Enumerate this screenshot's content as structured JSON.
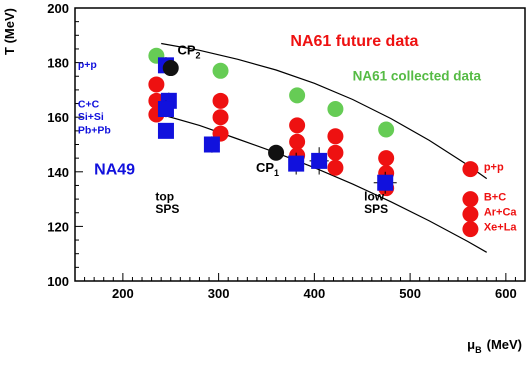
{
  "chart_data": {
    "type": "scatter",
    "xlabel": "(MeV)",
    "xlabel_symbol": "μ",
    "xlabel_sub": "B",
    "ylabel": "T (MeV)",
    "xlim": [
      150,
      620
    ],
    "ylim": [
      100,
      200
    ],
    "xticks": [
      200,
      300,
      400,
      500,
      600
    ],
    "yticks": [
      100,
      120,
      140,
      160,
      180,
      200
    ],
    "grid": false,
    "colors": {
      "na61_future": "#ee1111",
      "na61_collected": "#66cc55",
      "na49": "#1111dd",
      "critical_point": "#111111",
      "curve": "#000000",
      "red_label": "#ee1111",
      "green_label": "#55bb44",
      "blue_label": "#1111dd",
      "black_label": "#000000"
    },
    "curves": [
      {
        "x": [
          240,
          280,
          320,
          360,
          400,
          440,
          480,
          520,
          560,
          580
        ],
        "y": [
          187.0,
          184.5,
          181.2,
          177.3,
          172.4,
          166.5,
          159.5,
          151.5,
          142.5,
          137.5
        ]
      },
      {
        "x": [
          240,
          280,
          320,
          360,
          400,
          440,
          480,
          520,
          560,
          580
        ],
        "y": [
          161.0,
          157.0,
          152.0,
          147.0,
          141.5,
          135.5,
          129.0,
          122.0,
          114.5,
          110.5
        ]
      }
    ],
    "series": [
      {
        "key": "na61_future",
        "marker": "circle",
        "points": [
          {
            "x": 235,
            "y": 172
          },
          {
            "x": 235,
            "y": 166
          },
          {
            "x": 235,
            "y": 161
          },
          {
            "x": 302,
            "y": 166
          },
          {
            "x": 302,
            "y": 160
          },
          {
            "x": 302,
            "y": 154
          },
          {
            "x": 382,
            "y": 157
          },
          {
            "x": 382,
            "y": 151
          },
          {
            "x": 382,
            "y": 146
          },
          {
            "x": 422,
            "y": 153
          },
          {
            "x": 422,
            "y": 147
          },
          {
            "x": 422,
            "y": 141.5
          },
          {
            "x": 475,
            "y": 145
          },
          {
            "x": 475,
            "y": 139.5
          },
          {
            "x": 475,
            "y": 134
          },
          {
            "x": 563,
            "y": 141
          },
          {
            "x": 563,
            "y": 130
          },
          {
            "x": 563,
            "y": 124.5
          },
          {
            "x": 563,
            "y": 119
          }
        ]
      },
      {
        "key": "na61_collected",
        "marker": "circle",
        "points": [
          {
            "x": 235,
            "y": 182.5
          },
          {
            "x": 302,
            "y": 177
          },
          {
            "x": 382,
            "y": 168
          },
          {
            "x": 422,
            "y": 163
          },
          {
            "x": 475,
            "y": 155.5
          }
        ]
      },
      {
        "key": "na49",
        "marker": "square",
        "points": [
          {
            "x": 245,
            "y": 179,
            "xerr": 5,
            "yerr": 3
          },
          {
            "x": 248,
            "y": 166,
            "xerr": 6,
            "yerr": 3
          },
          {
            "x": 245,
            "y": 163,
            "xerr": 6,
            "yerr": 3
          },
          {
            "x": 245,
            "y": 155,
            "xerr": 7,
            "yerr": 2.5
          },
          {
            "x": 293,
            "y": 150,
            "xerr": 8,
            "yerr": 3
          },
          {
            "x": 381,
            "y": 143,
            "xerr": 7,
            "yerr": 4
          },
          {
            "x": 405,
            "y": 144,
            "xerr": 10,
            "yerr": 5
          },
          {
            "x": 474,
            "y": 136,
            "xerr": 12,
            "yerr": 4
          }
        ]
      },
      {
        "key": "critical_point",
        "marker": "circle",
        "points": [
          {
            "x": 250,
            "y": 178
          },
          {
            "x": 360,
            "y": 147
          }
        ]
      }
    ],
    "annotations": [
      {
        "text": "NA61 future data",
        "x": 375,
        "y": 186,
        "size": 16,
        "color_key": "red_label"
      },
      {
        "text": "NA61 collected data",
        "x": 440,
        "y": 173.5,
        "size": 13.5,
        "color_key": "green_label"
      },
      {
        "text": "NA49",
        "x": 170,
        "y": 139,
        "size": 16,
        "color_key": "blue_label"
      },
      {
        "text": "p+p",
        "x": 153,
        "y": 178,
        "size": 10.5,
        "color_key": "blue_label"
      },
      {
        "text": "C+C",
        "x": 153,
        "y": 163.5,
        "size": 10.5,
        "color_key": "blue_label"
      },
      {
        "text": "Si+Si",
        "x": 153,
        "y": 159,
        "size": 10.5,
        "color_key": "blue_label"
      },
      {
        "text": "Pb+Pb",
        "x": 153,
        "y": 154,
        "size": 10.5,
        "color_key": "blue_label"
      },
      {
        "text": "top",
        "x": 234,
        "y": 129.5,
        "size": 12,
        "color_key": "black_label"
      },
      {
        "text": "SPS",
        "x": 234,
        "y": 125,
        "size": 12,
        "color_key": "black_label"
      },
      {
        "text": "low",
        "x": 452,
        "y": 129.5,
        "size": 12,
        "color_key": "black_label"
      },
      {
        "text": "SPS",
        "x": 452,
        "y": 125,
        "size": 12,
        "color_key": "black_label"
      },
      {
        "text": "p+p",
        "x": 577,
        "y": 140.5,
        "size": 11,
        "color_key": "red_label"
      },
      {
        "text": "B+C",
        "x": 577,
        "y": 129.5,
        "size": 11,
        "color_key": "red_label"
      },
      {
        "text": "Ar+Ca",
        "x": 577,
        "y": 124,
        "size": 11,
        "color_key": "red_label"
      },
      {
        "text": "Xe+La",
        "x": 577,
        "y": 118.5,
        "size": 11,
        "color_key": "red_label"
      }
    ],
    "cp_labels": [
      {
        "base": "CP",
        "sub": "2",
        "x": 257,
        "y": 183,
        "size": 13
      },
      {
        "base": "CP",
        "sub": "1",
        "x": 339,
        "y": 140,
        "size": 13
      }
    ]
  }
}
